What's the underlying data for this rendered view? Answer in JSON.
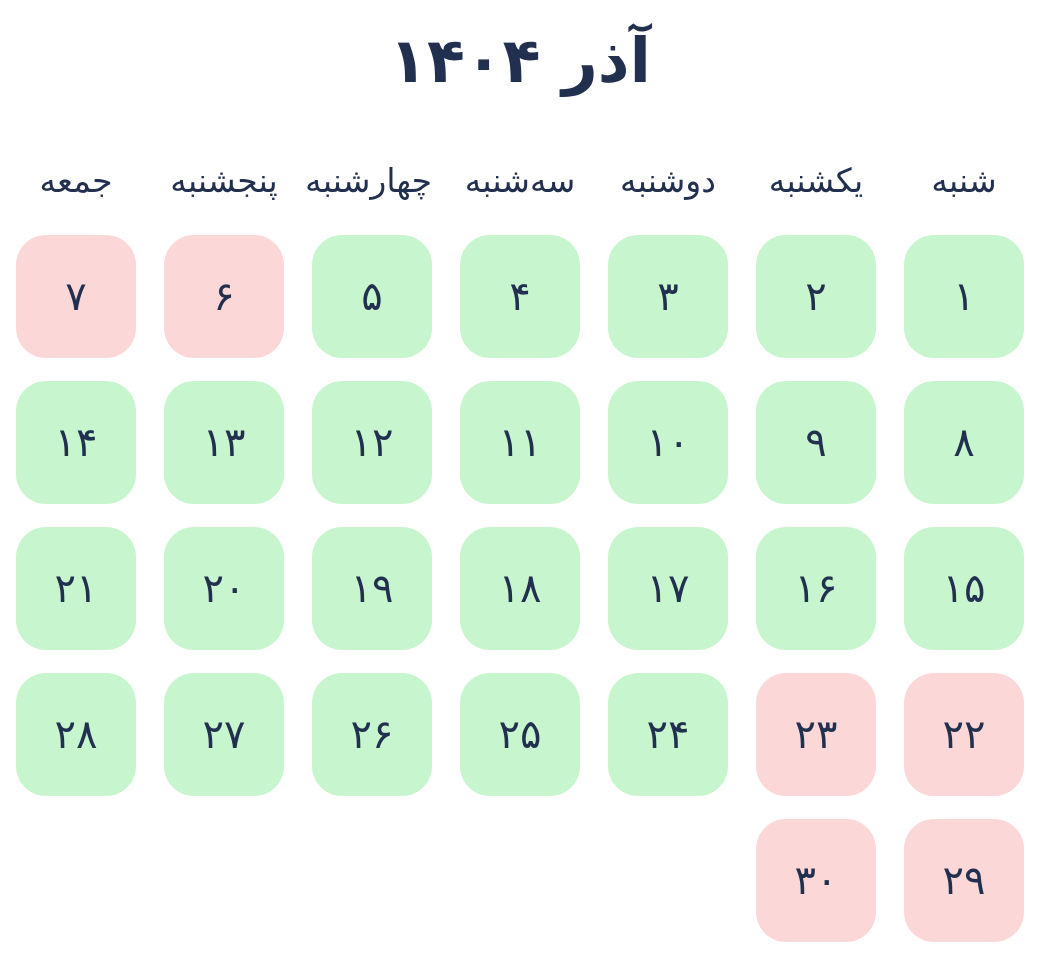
{
  "title": "آذر ۱۴۰۴",
  "weekday_headers": [
    "شنبه",
    "یکشنبه",
    "دوشنبه",
    "سه‌شنبه",
    "چهارشنبه",
    "پنجشنبه",
    "جمعه"
  ],
  "month_days": [
    {
      "day": "۱",
      "holiday": false
    },
    {
      "day": "۲",
      "holiday": false
    },
    {
      "day": "۳",
      "holiday": false
    },
    {
      "day": "۴",
      "holiday": false
    },
    {
      "day": "۵",
      "holiday": false
    },
    {
      "day": "۶",
      "holiday": true
    },
    {
      "day": "۷",
      "holiday": true
    },
    {
      "day": "۸",
      "holiday": false
    },
    {
      "day": "۹",
      "holiday": false
    },
    {
      "day": "۱۰",
      "holiday": false
    },
    {
      "day": "۱۱",
      "holiday": false
    },
    {
      "day": "۱۲",
      "holiday": false
    },
    {
      "day": "۱۳",
      "holiday": false
    },
    {
      "day": "۱۴",
      "holiday": false
    },
    {
      "day": "۱۵",
      "holiday": false
    },
    {
      "day": "۱۶",
      "holiday": false
    },
    {
      "day": "۱۷",
      "holiday": false
    },
    {
      "day": "۱۸",
      "holiday": false
    },
    {
      "day": "۱۹",
      "holiday": false
    },
    {
      "day": "۲۰",
      "holiday": false
    },
    {
      "day": "۲۱",
      "holiday": false
    },
    {
      "day": "۲۲",
      "holiday": true
    },
    {
      "day": "۲۳",
      "holiday": true
    },
    {
      "day": "۲۴",
      "holiday": false
    },
    {
      "day": "۲۵",
      "holiday": false
    },
    {
      "day": "۲۶",
      "holiday": false
    },
    {
      "day": "۲۷",
      "holiday": false
    },
    {
      "day": "۲۸",
      "holiday": false
    },
    {
      "day": "۲۹",
      "holiday": true
    },
    {
      "day": "۳۰",
      "holiday": true
    }
  ],
  "colors": {
    "page_bg": "#ffffff",
    "text_navy": "#22304f",
    "workday_bg": "#c7f5cd",
    "holiday_bg": "#fcd7d7"
  }
}
